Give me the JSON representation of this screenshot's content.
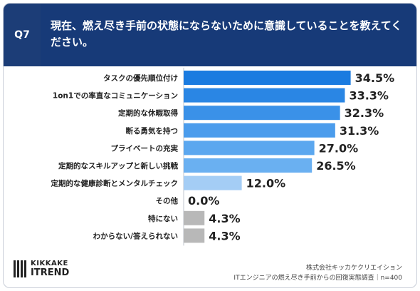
{
  "header": {
    "q_label": "Q7",
    "question": "現在、燃え尽き手前の状態にならないために意識していることを教えてください。"
  },
  "chart_data": {
    "type": "bar",
    "orientation": "horizontal",
    "categories": [
      "タスクの優先順位付け",
      "1on1での率直なコミュニケーション",
      "定期的な休暇取得",
      "断る勇気を持つ",
      "プライベートの充実",
      "定期的なスキルアップと新しい挑戦",
      "定期的な健康診断とメンタルチェック",
      "その他",
      "特にない",
      "わからない/答えられない"
    ],
    "values": [
      34.5,
      33.3,
      32.3,
      31.3,
      27.0,
      26.5,
      12.0,
      0.0,
      4.3,
      4.3
    ],
    "value_labels": [
      "34.5%",
      "33.3%",
      "32.3%",
      "31.3%",
      "27.0%",
      "26.5%",
      "12.0%",
      "0.0%",
      "4.3%",
      "4.3%"
    ],
    "colors": [
      "#1a7be0",
      "#2a86e4",
      "#3a91e8",
      "#4b9cec",
      "#5ba7ef",
      "#6ab0f1",
      "#a4cdf5",
      "#b8b8b8",
      "#b8b8b8",
      "#b8b8b8"
    ],
    "xlim": [
      0,
      40
    ],
    "grid": false,
    "legend": "none"
  },
  "footer": {
    "logo_top": "KIKKAKE",
    "logo_bottom": "ITREND",
    "credit_line1": "株式会社キッカケクリエイション",
    "credit_line2": "ITエンジニアの燃え尽き手前からの回復実態調査｜n=400"
  }
}
